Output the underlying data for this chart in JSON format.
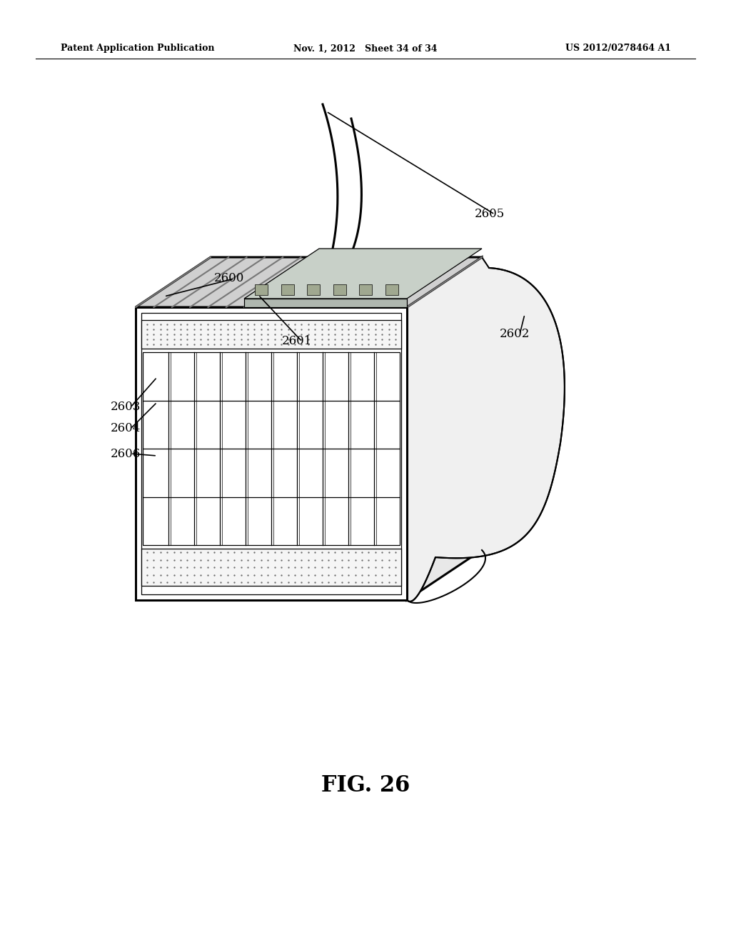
{
  "background_color": "#ffffff",
  "header_left": "Patent Application Publication",
  "header_mid": "Nov. 1, 2012   Sheet 34 of 34",
  "header_right": "US 2012/0278464 A1",
  "fig_label": "FIG. 26",
  "color_main": "#000000",
  "color_light_gray": "#e8e8e8",
  "color_mid_gray": "#d0d0d0",
  "color_dark_gray": "#888888",
  "color_dot": "#666666",
  "lw_thick": 2.2,
  "lw_main": 1.5,
  "lw_thin": 0.9,
  "lw_stripe": 1.3
}
